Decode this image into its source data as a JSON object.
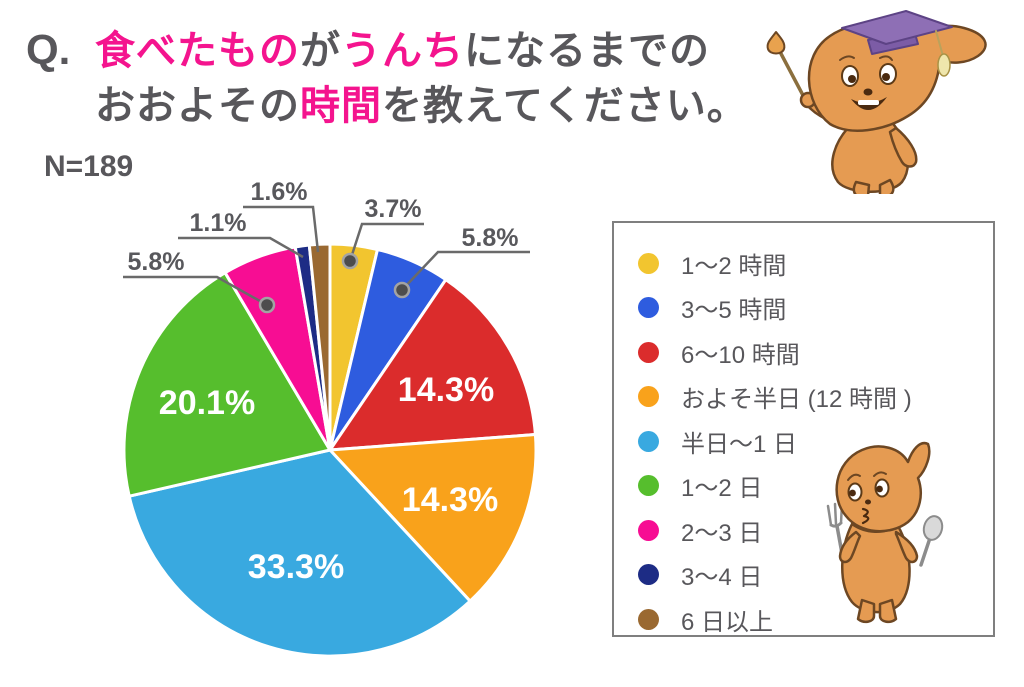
{
  "title": {
    "prefix": "Q.",
    "line1": [
      {
        "text": "食べたもの",
        "accent": true
      },
      {
        "text": "が",
        "accent": false
      },
      {
        "text": "うんち",
        "accent": true
      },
      {
        "text": "になるまでの",
        "accent": false
      }
    ],
    "line2": [
      {
        "text": "おおよその",
        "accent": false
      },
      {
        "text": "時間",
        "accent": true
      },
      {
        "text": "を教えてください。",
        "accent": false
      }
    ]
  },
  "colors": {
    "accent_pink": "#f4148e",
    "text_gray": "#58575b",
    "label_gray": "#58585c",
    "leader_line": "#6a6a6a",
    "dot_fill": "#4d4d4d",
    "dot_ring": "#a3a3a3",
    "legend_border": "#7f7f7f",
    "slice_gap_white": "#ffffff"
  },
  "icons": {
    "teacher_mascot": "poop-character-with-graduation-cap-and-pointer",
    "diner_mascot": "poop-character-with-fork-and-spoon"
  },
  "chart_data": {
    "type": "pie",
    "title": "Q. 食べたものがうんちになるまでのおおよその時間を教えてください。",
    "sample_size_label": "N=189",
    "unit": "%",
    "start_angle_deg": 0,
    "direction": "clockwise",
    "legend_position": "right-box",
    "segments": [
      {
        "label": "1～2 時間",
        "value_pct": 3.7,
        "color": "#f2c52f",
        "label_placement": "outside"
      },
      {
        "label": "3～5 時間",
        "value_pct": 5.8,
        "color": "#2e5cdf",
        "label_placement": "outside"
      },
      {
        "label": "6～10 時間",
        "value_pct": 14.3,
        "color": "#db2c2c",
        "label_placement": "inside"
      },
      {
        "label": "およそ半日 (12 時間 )",
        "value_pct": 14.3,
        "color": "#f9a21b",
        "label_placement": "inside"
      },
      {
        "label": "半日～1 日",
        "value_pct": 33.3,
        "color": "#39a9e0",
        "label_placement": "inside"
      },
      {
        "label": "1～2 日",
        "value_pct": 20.1,
        "color": "#56be2d",
        "label_placement": "inside"
      },
      {
        "label": "2～3 日",
        "value_pct": 5.8,
        "color": "#f70d93",
        "label_placement": "outside"
      },
      {
        "label": "3～4 日",
        "value_pct": 1.1,
        "color": "#1d2c85",
        "label_placement": "outside"
      },
      {
        "label": "6 日以上",
        "value_pct": 1.6,
        "color": "#9a6931",
        "label_placement": "outside"
      }
    ]
  }
}
